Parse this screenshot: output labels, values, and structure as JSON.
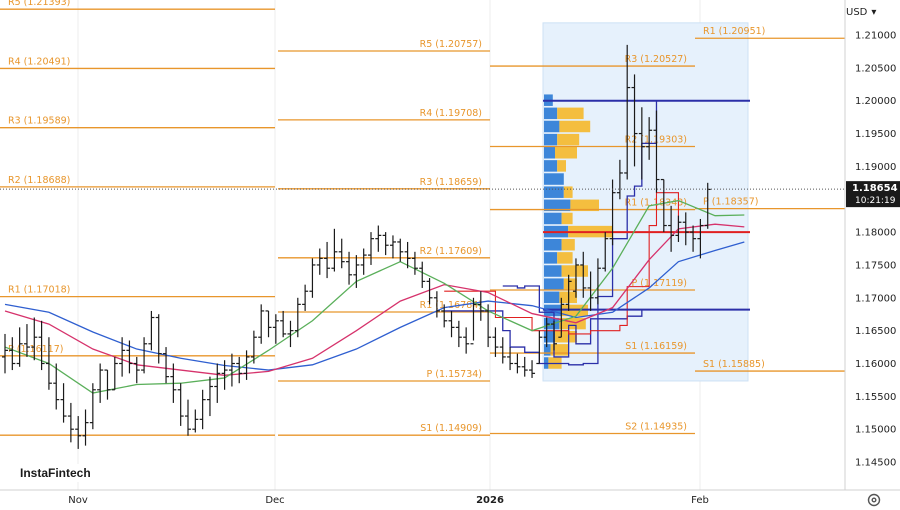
{
  "currency_label": "USD",
  "brand_label": "InstaFintech",
  "colors": {
    "pivot": "#e8962c",
    "bar": "#1a1a1a",
    "ma_fast": "#5aaf5a",
    "ma_mid": "#d6336c",
    "ma_slow": "#2f5fd0",
    "channel": "#2b2fa8",
    "box_red": "#e02020",
    "profile_blue": "#3d86d9",
    "profile_yellow": "#f4be3f",
    "vp_region": "#e6f1fc",
    "price_tag": "#1a1a1a"
  },
  "chart_data": {
    "type": "line",
    "title": "",
    "ylim": [
      1.1405,
      1.2158
    ],
    "y_ticks": [
      "1.21000",
      "1.20500",
      "1.20000",
      "1.19500",
      "1.19000",
      "1.18500",
      "1.18000",
      "1.17500",
      "1.17000",
      "1.16500",
      "1.16000",
      "1.15500",
      "1.15000",
      "1.14500"
    ],
    "x_ticks": [
      "Nov",
      "Dec",
      "2026",
      "Feb"
    ],
    "current_price": {
      "value": "1.18654",
      "time": "10:21:19"
    },
    "price_bars": [
      {
        "h": 1.1645,
        "l": 1.1585,
        "o": 1.161,
        "c": 1.162
      },
      {
        "h": 1.164,
        "l": 1.159,
        "o": 1.162,
        "c": 1.16
      },
      {
        "h": 1.1655,
        "l": 1.1595,
        "o": 1.16,
        "c": 1.163
      },
      {
        "h": 1.166,
        "l": 1.161,
        "o": 1.163,
        "c": 1.1625
      },
      {
        "h": 1.167,
        "l": 1.1605,
        "o": 1.1625,
        "c": 1.164
      },
      {
        "h": 1.1665,
        "l": 1.159,
        "o": 1.164,
        "c": 1.16
      },
      {
        "h": 1.164,
        "l": 1.156,
        "o": 1.16,
        "c": 1.157
      },
      {
        "h": 1.16,
        "l": 1.153,
        "o": 1.157,
        "c": 1.1545
      },
      {
        "h": 1.157,
        "l": 1.151,
        "o": 1.1545,
        "c": 1.152
      },
      {
        "h": 1.154,
        "l": 1.148,
        "o": 1.152,
        "c": 1.15
      },
      {
        "h": 1.152,
        "l": 1.147,
        "o": 1.15,
        "c": 1.149
      },
      {
        "h": 1.153,
        "l": 1.1475,
        "o": 1.149,
        "c": 1.151
      },
      {
        "h": 1.157,
        "l": 1.15,
        "o": 1.151,
        "c": 1.156
      },
      {
        "h": 1.16,
        "l": 1.154,
        "o": 1.156,
        "c": 1.159
      },
      {
        "h": 1.159,
        "l": 1.1545,
        "o": 1.159,
        "c": 1.156
      },
      {
        "h": 1.161,
        "l": 1.156,
        "o": 1.156,
        "c": 1.16
      },
      {
        "h": 1.164,
        "l": 1.158,
        "o": 1.16,
        "c": 1.162
      },
      {
        "h": 1.1635,
        "l": 1.1585,
        "o": 1.162,
        "c": 1.16
      },
      {
        "h": 1.161,
        "l": 1.157,
        "o": 1.16,
        "c": 1.159
      },
      {
        "h": 1.164,
        "l": 1.1585,
        "o": 1.159,
        "c": 1.163
      },
      {
        "h": 1.168,
        "l": 1.162,
        "o": 1.163,
        "c": 1.167
      },
      {
        "h": 1.1675,
        "l": 1.16,
        "o": 1.167,
        "c": 1.1615
      },
      {
        "h": 1.1625,
        "l": 1.157,
        "o": 1.1615,
        "c": 1.158
      },
      {
        "h": 1.16,
        "l": 1.154,
        "o": 1.158,
        "c": 1.156
      },
      {
        "h": 1.157,
        "l": 1.1505,
        "o": 1.156,
        "c": 1.152
      },
      {
        "h": 1.1545,
        "l": 1.149,
        "o": 1.152,
        "c": 1.15
      },
      {
        "h": 1.153,
        "l": 1.1495,
        "o": 1.15,
        "c": 1.1515
      },
      {
        "h": 1.156,
        "l": 1.15,
        "o": 1.1515,
        "c": 1.1545
      },
      {
        "h": 1.158,
        "l": 1.152,
        "o": 1.1545,
        "c": 1.1565
      },
      {
        "h": 1.16,
        "l": 1.154,
        "o": 1.1565,
        "c": 1.1585
      },
      {
        "h": 1.1605,
        "l": 1.156,
        "o": 1.1585,
        "c": 1.159
      },
      {
        "h": 1.1615,
        "l": 1.1565,
        "o": 1.159,
        "c": 1.16
      },
      {
        "h": 1.161,
        "l": 1.157,
        "o": 1.16,
        "c": 1.1585
      },
      {
        "h": 1.162,
        "l": 1.1575,
        "o": 1.1585,
        "c": 1.161
      },
      {
        "h": 1.165,
        "l": 1.16,
        "o": 1.161,
        "c": 1.164
      },
      {
        "h": 1.169,
        "l": 1.163,
        "o": 1.164,
        "c": 1.168
      },
      {
        "h": 1.168,
        "l": 1.164,
        "o": 1.168,
        "c": 1.1655
      },
      {
        "h": 1.1675,
        "l": 1.163,
        "o": 1.1655,
        "c": 1.1665
      },
      {
        "h": 1.168,
        "l": 1.164,
        "o": 1.1665,
        "c": 1.1645
      },
      {
        "h": 1.1665,
        "l": 1.1625,
        "o": 1.1645,
        "c": 1.165
      },
      {
        "h": 1.17,
        "l": 1.164,
        "o": 1.165,
        "c": 1.169
      },
      {
        "h": 1.172,
        "l": 1.168,
        "o": 1.169,
        "c": 1.171
      },
      {
        "h": 1.176,
        "l": 1.17,
        "o": 1.171,
        "c": 1.175
      },
      {
        "h": 1.1775,
        "l": 1.1735,
        "o": 1.175,
        "c": 1.176
      },
      {
        "h": 1.1785,
        "l": 1.173,
        "o": 1.176,
        "c": 1.1745
      },
      {
        "h": 1.1805,
        "l": 1.174,
        "o": 1.1745,
        "c": 1.177
      },
      {
        "h": 1.179,
        "l": 1.1745,
        "o": 1.177,
        "c": 1.1755
      },
      {
        "h": 1.177,
        "l": 1.172,
        "o": 1.1755,
        "c": 1.1735
      },
      {
        "h": 1.1765,
        "l": 1.1715,
        "o": 1.1735,
        "c": 1.175
      },
      {
        "h": 1.1775,
        "l": 1.1735,
        "o": 1.175,
        "c": 1.1765
      },
      {
        "h": 1.18,
        "l": 1.175,
        "o": 1.1765,
        "c": 1.179
      },
      {
        "h": 1.181,
        "l": 1.177,
        "o": 1.179,
        "c": 1.1795
      },
      {
        "h": 1.18,
        "l": 1.1765,
        "o": 1.1795,
        "c": 1.178
      },
      {
        "h": 1.1795,
        "l": 1.176,
        "o": 1.178,
        "c": 1.1785
      },
      {
        "h": 1.179,
        "l": 1.1755,
        "o": 1.1785,
        "c": 1.177
      },
      {
        "h": 1.1785,
        "l": 1.1745,
        "o": 1.177,
        "c": 1.176
      },
      {
        "h": 1.177,
        "l": 1.1735,
        "o": 1.176,
        "c": 1.1745
      },
      {
        "h": 1.1755,
        "l": 1.1715,
        "o": 1.1745,
        "c": 1.1725
      },
      {
        "h": 1.173,
        "l": 1.169,
        "o": 1.1725,
        "c": 1.17
      },
      {
        "h": 1.171,
        "l": 1.167,
        "o": 1.17,
        "c": 1.168
      },
      {
        "h": 1.169,
        "l": 1.1655,
        "o": 1.168,
        "c": 1.1665
      },
      {
        "h": 1.168,
        "l": 1.164,
        "o": 1.1665,
        "c": 1.1655
      },
      {
        "h": 1.1665,
        "l": 1.1625,
        "o": 1.1655,
        "c": 1.164
      },
      {
        "h": 1.1655,
        "l": 1.1615,
        "o": 1.164,
        "c": 1.163
      },
      {
        "h": 1.17,
        "l": 1.1635,
        "o": 1.163,
        "c": 1.169
      },
      {
        "h": 1.171,
        "l": 1.1665,
        "o": 1.169,
        "c": 1.168
      },
      {
        "h": 1.169,
        "l": 1.1625,
        "o": 1.168,
        "c": 1.164
      },
      {
        "h": 1.1655,
        "l": 1.161,
        "o": 1.164,
        "c": 1.1625
      },
      {
        "h": 1.164,
        "l": 1.16,
        "o": 1.1625,
        "c": 1.161
      },
      {
        "h": 1.1625,
        "l": 1.159,
        "o": 1.161,
        "c": 1.16
      },
      {
        "h": 1.1615,
        "l": 1.1585,
        "o": 1.16,
        "c": 1.1595
      },
      {
        "h": 1.161,
        "l": 1.158,
        "o": 1.1595,
        "c": 1.159
      },
      {
        "h": 1.1605,
        "l": 1.1578,
        "o": 1.159,
        "c": 1.1585
      },
      {
        "h": 1.165,
        "l": 1.16,
        "o": 1.16,
        "c": 1.164
      },
      {
        "h": 1.167,
        "l": 1.1625,
        "o": 1.164,
        "c": 1.166
      },
      {
        "h": 1.1665,
        "l": 1.162,
        "o": 1.166,
        "c": 1.163
      },
      {
        "h": 1.17,
        "l": 1.164,
        "o": 1.164,
        "c": 1.169
      },
      {
        "h": 1.1735,
        "l": 1.168,
        "o": 1.169,
        "c": 1.1725
      },
      {
        "h": 1.176,
        "l": 1.17,
        "o": 1.171,
        "c": 1.175
      },
      {
        "h": 1.177,
        "l": 1.17,
        "o": 1.175,
        "c": 1.1715
      },
      {
        "h": 1.174,
        "l": 1.168,
        "o": 1.1715,
        "c": 1.17
      },
      {
        "h": 1.176,
        "l": 1.169,
        "o": 1.17,
        "c": 1.1745
      },
      {
        "h": 1.18,
        "l": 1.174,
        "o": 1.1745,
        "c": 1.179
      },
      {
        "h": 1.188,
        "l": 1.178,
        "o": 1.179,
        "c": 1.186
      },
      {
        "h": 1.191,
        "l": 1.185,
        "o": 1.186,
        "c": 1.189
      },
      {
        "h": 1.2085,
        "l": 1.188,
        "o": 1.189,
        "c": 1.202
      },
      {
        "h": 1.204,
        "l": 1.19,
        "o": 1.202,
        "c": 1.195
      },
      {
        "h": 1.199,
        "l": 1.188,
        "o": 1.195,
        "c": 1.193
      },
      {
        "h": 1.1975,
        "l": 1.191,
        "o": 1.193,
        "c": 1.1955
      },
      {
        "h": 1.1985,
        "l": 1.186,
        "o": 1.1955,
        "c": 1.188
      },
      {
        "h": 1.188,
        "l": 1.18,
        "o": 1.188,
        "c": 1.181
      },
      {
        "h": 1.184,
        "l": 1.177,
        "o": 1.181,
        "c": 1.1795
      },
      {
        "h": 1.1825,
        "l": 1.1785,
        "o": 1.1795,
        "c": 1.1815
      },
      {
        "h": 1.183,
        "l": 1.178,
        "o": 1.1815,
        "c": 1.18
      },
      {
        "h": 1.181,
        "l": 1.177,
        "o": 1.18,
        "c": 1.179
      },
      {
        "h": 1.182,
        "l": 1.176,
        "o": 1.179,
        "c": 1.181
      },
      {
        "h": 1.1875,
        "l": 1.1805,
        "o": 1.181,
        "c": 1.1865
      }
    ],
    "ma_fast": [
      [
        0,
        1.1625
      ],
      [
        6,
        1.16
      ],
      [
        12,
        1.1555
      ],
      [
        18,
        1.1568
      ],
      [
        24,
        1.157
      ],
      [
        30,
        1.1578
      ],
      [
        36,
        1.162
      ],
      [
        42,
        1.1665
      ],
      [
        48,
        1.1725
      ],
      [
        54,
        1.1755
      ],
      [
        60,
        1.1722
      ],
      [
        66,
        1.168
      ],
      [
        72,
        1.165
      ],
      [
        78,
        1.1672
      ],
      [
        83,
        1.1745
      ],
      [
        88,
        1.184
      ],
      [
        92,
        1.1848
      ],
      [
        97,
        1.1825
      ],
      [
        101,
        1.1826
      ]
    ],
    "ma_mid": [
      [
        0,
        1.168
      ],
      [
        6,
        1.166
      ],
      [
        12,
        1.1622
      ],
      [
        18,
        1.1598
      ],
      [
        24,
        1.159
      ],
      [
        30,
        1.1582
      ],
      [
        36,
        1.1588
      ],
      [
        42,
        1.1608
      ],
      [
        48,
        1.165
      ],
      [
        54,
        1.1695
      ],
      [
        60,
        1.172
      ],
      [
        66,
        1.1708
      ],
      [
        72,
        1.1676
      ],
      [
        78,
        1.1662
      ],
      [
        83,
        1.1685
      ],
      [
        88,
        1.1758
      ],
      [
        92,
        1.1805
      ],
      [
        97,
        1.1812
      ],
      [
        101,
        1.1808
      ]
    ],
    "ma_slow": [
      [
        0,
        1.169
      ],
      [
        6,
        1.1678
      ],
      [
        12,
        1.1648
      ],
      [
        18,
        1.1622
      ],
      [
        24,
        1.1608
      ],
      [
        30,
        1.1597
      ],
      [
        36,
        1.159
      ],
      [
        42,
        1.1598
      ],
      [
        48,
        1.1622
      ],
      [
        54,
        1.1655
      ],
      [
        60,
        1.1685
      ],
      [
        66,
        1.1695
      ],
      [
        72,
        1.1688
      ],
      [
        78,
        1.167
      ],
      [
        83,
        1.1678
      ],
      [
        88,
        1.1715
      ],
      [
        92,
        1.1755
      ],
      [
        97,
        1.1772
      ],
      [
        101,
        1.1785
      ]
    ],
    "pivot_sets": [
      {
        "x_start": 0,
        "x_end": 22,
        "label_side": "left",
        "levels": [
          {
            "name": "R5",
            "value": 1.21393
          },
          {
            "name": "R4",
            "value": 1.20491
          },
          {
            "name": "R3",
            "value": 1.19589
          },
          {
            "name": "R2",
            "value": 1.18688
          },
          {
            "name": "R1",
            "value": 1.17018
          },
          {
            "name": "P",
            "value": 1.16117
          },
          {
            "name": "S1",
            "value": 1.14909,
            "hidden_label": true
          }
        ]
      },
      {
        "x_start": 22,
        "x_end": 50,
        "label_side": "right",
        "levels": [
          {
            "name": "R5",
            "value": 1.20757
          },
          {
            "name": "R4",
            "value": 1.19708
          },
          {
            "name": "R3",
            "value": 1.18659
          },
          {
            "name": "R2",
            "value": 1.17609
          },
          {
            "name": "R1",
            "value": 1.16784
          },
          {
            "name": "P",
            "value": 1.15734
          },
          {
            "name": "S1",
            "value": 1.14909
          }
        ]
      },
      {
        "x_start": 50,
        "x_end": 74,
        "label_side": "right",
        "levels": [
          {
            "name": "R3",
            "value": 1.20527
          },
          {
            "name": "R2",
            "value": 1.19303
          },
          {
            "name": "R1",
            "value": 1.18343
          },
          {
            "name": "P",
            "value": 1.17119
          },
          {
            "name": "S1",
            "value": 1.16159
          },
          {
            "name": "S2",
            "value": 1.14935
          }
        ]
      },
      {
        "x_start": 74,
        "x_end": 101,
        "label_side": "left",
        "levels": [
          {
            "name": "R1",
            "value": 1.20951
          },
          {
            "name": "P",
            "value": 1.18357
          },
          {
            "name": "S1",
            "value": 1.15885
          }
        ]
      }
    ],
    "volume_profile": {
      "price_top": 1.2085,
      "price_bottom": 1.1578,
      "x_start": 60,
      "x_end": 101,
      "poc": 1.18,
      "vah": 1.2,
      "val": 1.1682,
      "rows": [
        {
          "price": 1.2,
          "blue": 4,
          "yellow": 0
        },
        {
          "price": 1.198,
          "blue": 6,
          "yellow": 12
        },
        {
          "price": 1.196,
          "blue": 7,
          "yellow": 14
        },
        {
          "price": 1.194,
          "blue": 6,
          "yellow": 10
        },
        {
          "price": 1.192,
          "blue": 5,
          "yellow": 10
        },
        {
          "price": 1.19,
          "blue": 6,
          "yellow": 4
        },
        {
          "price": 1.188,
          "blue": 9,
          "yellow": 0
        },
        {
          "price": 1.186,
          "blue": 9,
          "yellow": 4
        },
        {
          "price": 1.184,
          "blue": 12,
          "yellow": 13
        },
        {
          "price": 1.182,
          "blue": 8,
          "yellow": 5
        },
        {
          "price": 1.18,
          "blue": 11,
          "yellow": 20
        },
        {
          "price": 1.178,
          "blue": 8,
          "yellow": 6
        },
        {
          "price": 1.176,
          "blue": 6,
          "yellow": 7
        },
        {
          "price": 1.174,
          "blue": 8,
          "yellow": 12
        },
        {
          "price": 1.172,
          "blue": 9,
          "yellow": 6
        },
        {
          "price": 1.17,
          "blue": 7,
          "yellow": 8
        },
        {
          "price": 1.168,
          "blue": 8,
          "yellow": 12
        },
        {
          "price": 1.166,
          "blue": 7,
          "yellow": 12
        },
        {
          "price": 1.164,
          "blue": 5,
          "yellow": 10
        },
        {
          "price": 1.162,
          "blue": 3,
          "yellow": 8
        },
        {
          "price": 1.16,
          "blue": 2,
          "yellow": 6
        }
      ]
    },
    "channel_steps": [
      [
        68,
        1.1718
      ],
      [
        70,
        1.1715
      ],
      [
        71,
        1.1718
      ],
      [
        73,
        1.1678
      ],
      [
        75,
        1.161
      ],
      [
        77,
        1.1658
      ],
      [
        78,
        1.163
      ],
      [
        80,
        1.1668
      ],
      [
        81,
        1.1702
      ],
      [
        83,
        1.179
      ],
      [
        85,
        1.1855
      ],
      [
        86,
        1.187
      ],
      [
        87,
        1.1935
      ],
      [
        89,
        1.2
      ],
      [
        101,
        1.2
      ]
    ],
    "channel_low_steps": [
      [
        60,
        1.168
      ],
      [
        66,
        1.168
      ],
      [
        68,
        1.165
      ],
      [
        69,
        1.1625
      ],
      [
        71,
        1.1617
      ],
      [
        73,
        1.16
      ],
      [
        77,
        1.1598
      ],
      [
        79,
        1.16
      ],
      [
        81,
        1.1668
      ],
      [
        85,
        1.1672
      ],
      [
        87,
        1.1682
      ],
      [
        101,
        1.1682
      ]
    ],
    "red_steps": [
      [
        60,
        1.171
      ],
      [
        66,
        1.171
      ],
      [
        67,
        1.167
      ],
      [
        72,
        1.165
      ],
      [
        77,
        1.1645
      ],
      [
        80,
        1.165
      ],
      [
        81,
        1.165
      ],
      [
        84,
        1.1658
      ],
      [
        85,
        1.1717
      ],
      [
        88,
        1.181
      ],
      [
        89,
        1.186
      ],
      [
        91,
        1.186
      ],
      [
        92,
        1.18
      ],
      [
        101,
        1.18
      ]
    ]
  }
}
